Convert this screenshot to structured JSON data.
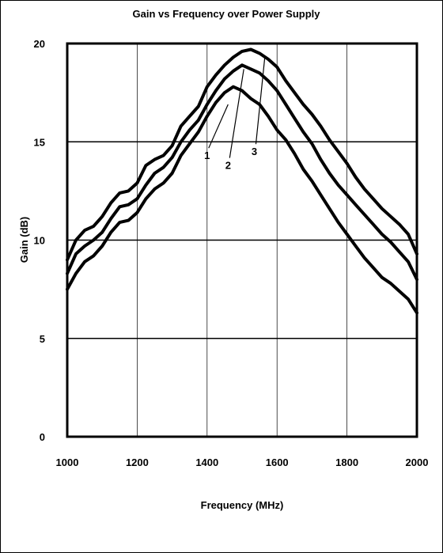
{
  "chart_data": {
    "type": "line",
    "title": "Gain vs Frequency over Power Supply",
    "xlabel": "Frequency (MHz)",
    "ylabel": "Gain (dB)",
    "xlim": [
      1000,
      2000
    ],
    "ylim": [
      0,
      20
    ],
    "x_ticks": [
      "1000",
      "1200",
      "1400",
      "1600",
      "1800",
      "2000"
    ],
    "y_ticks": [
      "0",
      "5",
      "10",
      "15",
      "20"
    ],
    "grid": true,
    "legend": "none",
    "series": [
      {
        "name": "1",
        "x": [
          1000,
          1025,
          1050,
          1075,
          1100,
          1125,
          1150,
          1175,
          1200,
          1225,
          1250,
          1275,
          1300,
          1325,
          1350,
          1375,
          1400,
          1425,
          1450,
          1475,
          1500,
          1525,
          1550,
          1575,
          1600,
          1625,
          1650,
          1675,
          1700,
          1725,
          1750,
          1775,
          1800,
          1825,
          1850,
          1875,
          1900,
          1925,
          1950,
          1975,
          2000
        ],
        "y": [
          7.5,
          8.3,
          8.9,
          9.2,
          9.7,
          10.4,
          10.9,
          11.0,
          11.4,
          12.1,
          12.6,
          12.9,
          13.4,
          14.3,
          14.9,
          15.5,
          16.3,
          17.0,
          17.5,
          17.8,
          17.6,
          17.2,
          16.9,
          16.3,
          15.6,
          15.1,
          14.4,
          13.6,
          13.0,
          12.3,
          11.6,
          10.9,
          10.3,
          9.7,
          9.1,
          8.6,
          8.1,
          7.8,
          7.4,
          7.0,
          6.3
        ]
      },
      {
        "name": "2",
        "x": [
          1000,
          1025,
          1050,
          1075,
          1100,
          1125,
          1150,
          1175,
          1200,
          1225,
          1250,
          1275,
          1300,
          1325,
          1350,
          1375,
          1400,
          1425,
          1450,
          1475,
          1500,
          1525,
          1550,
          1575,
          1600,
          1625,
          1650,
          1675,
          1700,
          1725,
          1750,
          1775,
          1800,
          1825,
          1850,
          1875,
          1900,
          1925,
          1950,
          1975,
          2000
        ],
        "y": [
          8.3,
          9.3,
          9.7,
          10.0,
          10.4,
          11.1,
          11.7,
          11.8,
          12.1,
          12.8,
          13.4,
          13.7,
          14.2,
          15.0,
          15.6,
          16.1,
          16.9,
          17.6,
          18.2,
          18.6,
          18.9,
          18.7,
          18.5,
          18.1,
          17.6,
          16.9,
          16.2,
          15.5,
          14.9,
          14.1,
          13.4,
          12.8,
          12.3,
          11.8,
          11.3,
          10.8,
          10.3,
          9.9,
          9.4,
          8.9,
          8.0
        ]
      },
      {
        "name": "3",
        "x": [
          1000,
          1025,
          1050,
          1075,
          1100,
          1125,
          1150,
          1175,
          1200,
          1225,
          1250,
          1275,
          1300,
          1325,
          1350,
          1375,
          1400,
          1425,
          1450,
          1475,
          1500,
          1525,
          1550,
          1575,
          1600,
          1625,
          1650,
          1675,
          1700,
          1725,
          1750,
          1775,
          1800,
          1825,
          1850,
          1875,
          1900,
          1925,
          1950,
          1975,
          2000
        ],
        "y": [
          9.0,
          10.0,
          10.5,
          10.7,
          11.2,
          11.9,
          12.4,
          12.5,
          12.9,
          13.8,
          14.1,
          14.3,
          14.8,
          15.8,
          16.3,
          16.8,
          17.8,
          18.4,
          18.9,
          19.3,
          19.6,
          19.7,
          19.5,
          19.2,
          18.8,
          18.1,
          17.5,
          16.9,
          16.4,
          15.8,
          15.1,
          14.5,
          13.9,
          13.2,
          12.6,
          12.1,
          11.6,
          11.2,
          10.8,
          10.3,
          9.3
        ]
      }
    ],
    "annotations": [
      {
        "text": "1",
        "x": 1460,
        "y": 16.9,
        "label_x": 1400,
        "label_y": 14.6
      },
      {
        "text": "2",
        "x": 1505,
        "y": 18.7,
        "label_x": 1460,
        "label_y": 14.1
      },
      {
        "text": "3",
        "x": 1565,
        "y": 19.3,
        "label_x": 1535,
        "label_y": 14.8
      }
    ]
  }
}
